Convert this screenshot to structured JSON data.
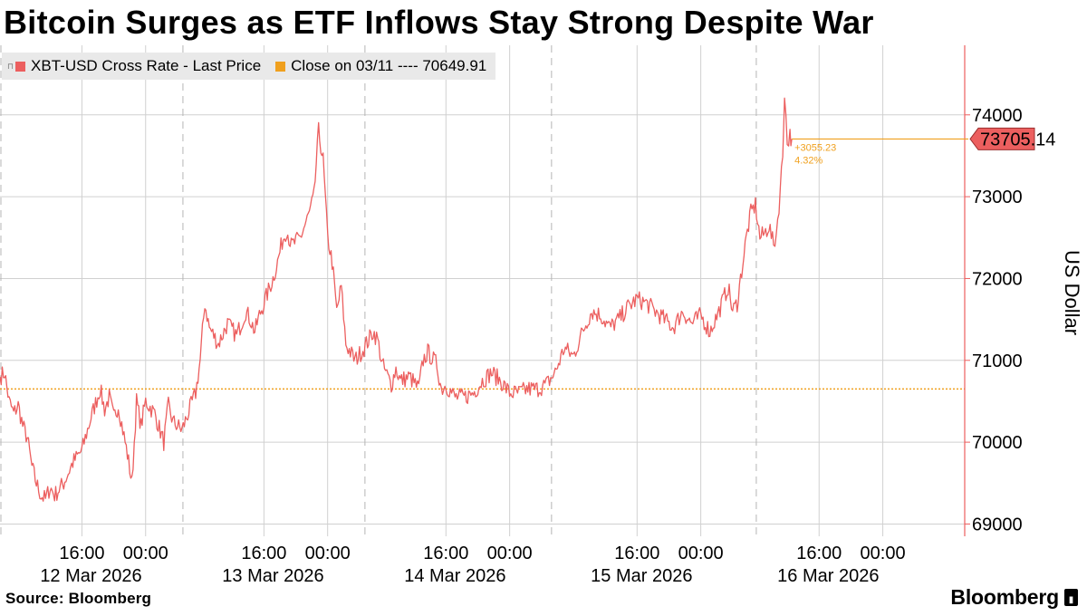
{
  "title": "Bitcoin Surges as ETF Inflows Stay Strong Despite War",
  "legend": {
    "price_label": "XBT-USD Cross Rate - Last Price",
    "close_label": "Close on 03/11 ---- 70649.91"
  },
  "source": "Source: Bloomberg",
  "brand": "Bloomberg",
  "colors": {
    "price": "#ec5f5f",
    "close": "#f0a01e",
    "grid": "#d0d0d0",
    "axis": "#ec5f5f"
  },
  "chart_data": {
    "type": "line",
    "ylabel": "US Dollar",
    "ylim": [
      68850,
      74850
    ],
    "yticks": [
      69000,
      70000,
      71000,
      72000,
      73000,
      74000
    ],
    "xlim": [
      0,
      106
    ],
    "x_time_ticks": [
      {
        "x": 9,
        "label": "16:00"
      },
      {
        "x": 16,
        "label": "00:00"
      },
      {
        "x": 29,
        "label": "16:00"
      },
      {
        "x": 36,
        "label": "00:00"
      },
      {
        "x": 49,
        "label": "16:00"
      },
      {
        "x": 56,
        "label": "00:00"
      },
      {
        "x": 70,
        "label": "16:00"
      },
      {
        "x": 77,
        "label": "00:00"
      },
      {
        "x": 90,
        "label": "16:00"
      },
      {
        "x": 97,
        "label": "00:00"
      }
    ],
    "x_date_labels": [
      {
        "x": 10,
        "label": "12 Mar 2026"
      },
      {
        "x": 30,
        "label": "13 Mar 2026"
      },
      {
        "x": 50,
        "label": "14 Mar 2026"
      },
      {
        "x": 70.5,
        "label": "15 Mar 2026"
      },
      {
        "x": 91,
        "label": "16 Mar 2026"
      }
    ],
    "x_day_boundaries": [
      0,
      20,
      40,
      60.5,
      83
    ],
    "reference_line": {
      "label": "Close on 03/11",
      "value": 70649.91
    },
    "last_value": 73705.14,
    "last_value_label": "73705.14",
    "change_abs": "+3055.23",
    "change_pct": "4.32%",
    "series": [
      {
        "name": "XBT-USD Cross Rate - Last Price",
        "x": [
          0,
          0.5,
          1,
          1.5,
          2,
          2.5,
          3,
          3.5,
          4,
          4.5,
          5,
          5.5,
          6,
          7,
          8,
          9,
          10,
          11,
          11.5,
          12,
          12.5,
          13,
          14,
          14.5,
          15,
          15.5,
          16,
          17,
          18,
          18.5,
          19,
          20,
          21,
          21.5,
          22,
          22.5,
          23,
          23.5,
          24,
          25,
          26,
          27,
          27.5,
          28,
          28.5,
          29,
          30,
          30.5,
          31,
          31.5,
          32,
          33,
          34,
          34.5,
          35,
          35.5,
          36,
          36.5,
          37,
          37.5,
          38,
          39,
          40,
          41,
          41.5,
          42,
          43,
          43.5,
          44,
          45,
          46,
          46.5,
          47,
          48,
          48.5,
          49,
          50,
          51,
          52,
          53,
          54,
          55,
          56,
          57,
          58,
          59,
          60,
          61,
          62,
          63,
          64,
          65,
          66,
          67,
          68,
          69,
          70,
          71,
          72,
          73,
          74,
          75,
          76,
          77,
          78,
          79,
          80,
          80.5,
          81,
          81.5,
          82,
          82.5,
          83,
          83.5,
          84,
          84.5,
          85,
          85.3,
          85.6,
          86,
          86.2,
          86.5,
          86.8,
          87
        ],
        "y": [
          70800,
          70850,
          70500,
          70350,
          70450,
          70200,
          70050,
          69700,
          69500,
          69350,
          69300,
          69450,
          69350,
          69500,
          69750,
          69900,
          70300,
          70650,
          70400,
          70550,
          70300,
          70450,
          69850,
          69500,
          70500,
          70200,
          70500,
          70350,
          70000,
          70450,
          70250,
          70150,
          70450,
          70600,
          71000,
          71700,
          71400,
          71300,
          71200,
          71450,
          71300,
          71600,
          71500,
          71350,
          71550,
          71700,
          72000,
          72200,
          72450,
          72600,
          72400,
          72500,
          72800,
          73000,
          73800,
          73450,
          72500,
          72200,
          71600,
          71900,
          71200,
          71000,
          71150,
          71350,
          71250,
          70950,
          70700,
          70900,
          70750,
          70800,
          70650,
          71000,
          71100,
          70950,
          70650,
          70700,
          70550,
          70550,
          70600,
          70750,
          70850,
          70750,
          70600,
          70600,
          70650,
          70650,
          70700,
          70850,
          71150,
          71050,
          71350,
          71600,
          71550,
          71400,
          71500,
          71650,
          71750,
          71700,
          71600,
          71500,
          71400,
          71600,
          71450,
          71550,
          71350,
          71600,
          71900,
          71600,
          71700,
          72100,
          72500,
          72800,
          72900,
          72500,
          72550,
          72650,
          72400,
          72550,
          72900,
          73500,
          74300,
          73650,
          73750,
          73705.14
        ]
      }
    ]
  }
}
